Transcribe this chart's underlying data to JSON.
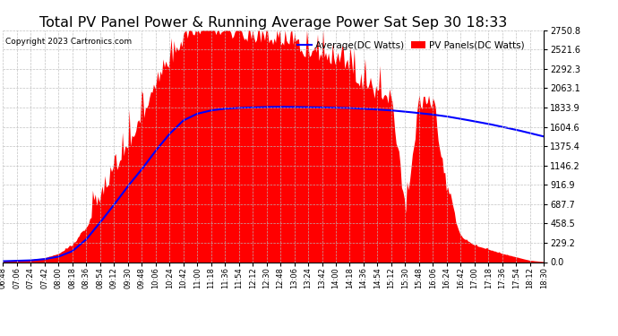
{
  "title": "Total PV Panel Power & Running Average Power Sat Sep 30 18:33",
  "copyright": "Copyright 2023 Cartronics.com",
  "legend_avg": "Average(DC Watts)",
  "legend_pv": "PV Panels(DC Watts)",
  "legend_avg_color": "blue",
  "legend_pv_color": "red",
  "y_ticks": [
    0.0,
    229.2,
    458.5,
    687.7,
    916.9,
    1146.2,
    1375.4,
    1604.6,
    1833.9,
    2063.1,
    2292.3,
    2521.6,
    2750.8
  ],
  "ylim": [
    0,
    2750.8
  ],
  "background_color": "#ffffff",
  "plot_bg_color": "#ffffff",
  "grid_color": "#bbbbbb",
  "title_fontsize": 11.5,
  "x_labels": [
    "06:48",
    "07:06",
    "07:24",
    "07:42",
    "08:00",
    "08:18",
    "08:36",
    "08:54",
    "09:12",
    "09:30",
    "09:48",
    "10:06",
    "10:24",
    "10:42",
    "11:00",
    "11:18",
    "11:36",
    "11:54",
    "12:12",
    "12:30",
    "12:48",
    "13:06",
    "13:24",
    "13:42",
    "14:00",
    "14:18",
    "14:36",
    "14:54",
    "15:12",
    "15:30",
    "15:48",
    "16:06",
    "16:24",
    "16:42",
    "17:00",
    "17:18",
    "17:36",
    "17:54",
    "18:12",
    "18:30"
  ],
  "pv_smooth": [
    10,
    20,
    30,
    50,
    100,
    200,
    400,
    700,
    1000,
    1300,
    1650,
    2000,
    2300,
    2550,
    2650,
    2680,
    2670,
    2620,
    2580,
    2560,
    2520,
    2480,
    2400,
    2350,
    2300,
    2250,
    1950,
    1900,
    1850,
    500,
    1800,
    1750,
    800,
    300,
    200,
    150,
    100,
    60,
    20,
    5
  ],
  "avg_smooth": [
    10,
    15,
    20,
    35,
    65,
    130,
    270,
    470,
    680,
    900,
    1100,
    1320,
    1520,
    1680,
    1760,
    1800,
    1820,
    1830,
    1835,
    1840,
    1842,
    1840,
    1838,
    1835,
    1832,
    1828,
    1820,
    1810,
    1800,
    1785,
    1768,
    1750,
    1728,
    1700,
    1670,
    1640,
    1605,
    1570,
    1530,
    1490
  ],
  "fill_color": "red",
  "line_color": "blue",
  "line_style": "-",
  "line_width": 1.5
}
